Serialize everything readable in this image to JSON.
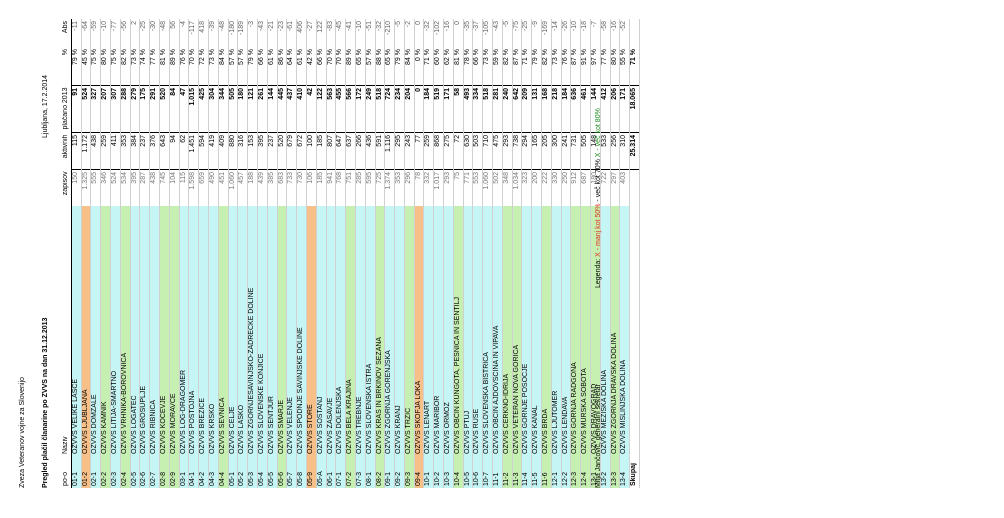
{
  "header": {
    "org": "Zveza Veteranov vojne za Slovenijo",
    "title": "Pregled plačil članarine po ZVVS na dan 31.12.2013",
    "date": "Ljubljana, 17.2.2014"
  },
  "columns": {
    "po": "po-o",
    "naziv": "Naziv",
    "zapisov": "zapisov",
    "aktivnih": "aktivnih",
    "placano": "plačano 2013",
    "pct": "%",
    "abs": "Abs"
  },
  "colors": {
    "green": "#c6efb2",
    "cyan": "#c6f5f5",
    "orange": "#f7c089",
    "red": "#e03020"
  },
  "rows": [
    {
      "po": "01-1",
      "naziv": "OZVVS VELIKE LAŠČE",
      "zap": "150",
      "akt": "115",
      "pla": "91",
      "pct": "79 %",
      "abs": "-11",
      "c": "cyan"
    },
    {
      "po": "01-2",
      "naziv": "OZVVS LJUBLJANA",
      "zap": "1.325",
      "akt": "1.172",
      "pla": "524",
      "pct": "45 %",
      "abs": "-64",
      "c": "orange"
    },
    {
      "po": "02-1",
      "naziv": "OZVVS DOMŽALE",
      "zap": "555",
      "akt": "438",
      "pla": "327",
      "pct": "75 %",
      "abs": "-59",
      "c": "cyan"
    },
    {
      "po": "02-2",
      "naziv": "OZVVS KAMNIK",
      "zap": "346",
      "akt": "259",
      "pla": "207",
      "pct": "80 %",
      "abs": "-10",
      "c": "green"
    },
    {
      "po": "02-3",
      "naziv": "OZVVS LITIJA-ŠMARTNO",
      "zap": "524",
      "akt": "411",
      "pla": "307",
      "pct": "75 %",
      "abs": "-77",
      "c": "cyan"
    },
    {
      "po": "02-4",
      "naziv": "OZVVS VRHNIKA-BOROVNICA",
      "zap": "534",
      "akt": "353",
      "pla": "288",
      "pct": "82 %",
      "abs": "-56",
      "c": "green"
    },
    {
      "po": "02-5",
      "naziv": "OZVVS LOGATEC",
      "zap": "395",
      "akt": "384",
      "pla": "279",
      "pct": "73 %",
      "abs": "2",
      "c": "cyan"
    },
    {
      "po": "02-6",
      "naziv": "OZVVS GROSUPLJE",
      "zap": "287",
      "akt": "237",
      "pla": "175",
      "pct": "74 %",
      "abs": "-25",
      "c": "cyan"
    },
    {
      "po": "02-7",
      "naziv": "OZVVS RIBNICA",
      "zap": "438",
      "akt": "376",
      "pla": "291",
      "pct": "77 %",
      "abs": "-30",
      "c": "cyan"
    },
    {
      "po": "02-8",
      "naziv": "OZVVS KOČEVJE",
      "zap": "745",
      "akt": "643",
      "pla": "520",
      "pct": "81 %",
      "abs": "-48",
      "c": "green"
    },
    {
      "po": "02-9",
      "naziv": "OZVVS MORAVČE",
      "zap": "104",
      "akt": "94",
      "pla": "84",
      "pct": "89 %",
      "abs": "56",
      "c": "green"
    },
    {
      "po": "03-1",
      "naziv": "OZVVS LOG-DRAGOMER",
      "zap": "115",
      "akt": "62",
      "pla": "47",
      "pct": "76 %",
      "abs": "-4",
      "c": "cyan"
    },
    {
      "po": "04-1",
      "naziv": "OZVVS POSTOJNA",
      "zap": "1.598",
      "akt": "1.451",
      "pla": "1.015",
      "pct": "70 %",
      "abs": "-117",
      "c": "cyan"
    },
    {
      "po": "04-2",
      "naziv": "OZVVS BREŽICE",
      "zap": "659",
      "akt": "594",
      "pla": "425",
      "pct": "72 %",
      "abs": "418",
      "c": "cyan"
    },
    {
      "po": "04-3",
      "naziv": "OZVVS KRŠKO",
      "zap": "490",
      "akt": "419",
      "pla": "304",
      "pct": "73 %",
      "abs": "-39",
      "c": "cyan"
    },
    {
      "po": "04-4",
      "naziv": "OZVVS SEVNICA",
      "zap": "451",
      "akt": "409",
      "pla": "344",
      "pct": "84 %",
      "abs": "-48",
      "c": "green"
    },
    {
      "po": "05-1",
      "naziv": "OZVVS CELJE",
      "zap": "1.060",
      "akt": "880",
      "pla": "505",
      "pct": "57 %",
      "abs": "-180",
      "c": "cyan"
    },
    {
      "po": "05-2",
      "naziv": "OZVVS LAŠKO",
      "zap": "457",
      "akt": "316",
      "pla": "180",
      "pct": "57 %",
      "abs": "-189",
      "c": "cyan"
    },
    {
      "po": "05-3",
      "naziv": "OZVVS ZGORNJESAVINJSKO-ZADREČKE DOLINE",
      "zap": "188",
      "akt": "153",
      "pla": "121",
      "pct": "79 %",
      "abs": "-3",
      "c": "cyan"
    },
    {
      "po": "05-4",
      "naziv": "OZVVS SLOVENSKE KONJICE",
      "zap": "439",
      "akt": "395",
      "pla": "261",
      "pct": "66 %",
      "abs": "-43",
      "c": "cyan"
    },
    {
      "po": "05-5",
      "naziv": "OZVVS ŠENTJUR",
      "zap": "385",
      "akt": "237",
      "pla": "144",
      "pct": "61 %",
      "abs": "-21",
      "c": "cyan"
    },
    {
      "po": "05-6",
      "naziv": "OZVVS ŠMARJE",
      "zap": "683",
      "akt": "520",
      "pla": "445",
      "pct": "86 %",
      "abs": "-23",
      "c": "green"
    },
    {
      "po": "05-7",
      "naziv": "OZVVS VELENJE",
      "zap": "733",
      "akt": "679",
      "pla": "437",
      "pct": "64 %",
      "abs": "-61",
      "c": "cyan"
    },
    {
      "po": "05-8",
      "naziv": "OZVVS SPODNJE SAVINJSKE DOLINE",
      "zap": "730",
      "akt": "672",
      "pla": "410",
      "pct": "61 %",
      "abs": "406",
      "c": "cyan"
    },
    {
      "po": "05-9",
      "naziv": "OZVVS ŠTORE",
      "zap": "106",
      "akt": "100",
      "pla": "42",
      "pct": "42 %",
      "abs": "-27",
      "c": "orange"
    },
    {
      "po": "05-A",
      "naziv": "OZVVS ŠOŠTANJ",
      "zap": "185",
      "akt": "185",
      "pla": "122",
      "pct": "66 %",
      "abs": "122",
      "c": "cyan"
    },
    {
      "po": "06-1",
      "naziv": "OZVVS ZASAVJE",
      "zap": "941",
      "akt": "807",
      "pla": "563",
      "pct": "70 %",
      "abs": "-83",
      "c": "cyan"
    },
    {
      "po": "07-1",
      "naziv": "OZVVS DOLENJSKA",
      "zap": "768",
      "akt": "647",
      "pla": "455",
      "pct": "70 %",
      "abs": "-45",
      "c": "cyan"
    },
    {
      "po": "07-2",
      "naziv": "OZVVS BELA KRAJINA",
      "zap": "751",
      "akt": "637",
      "pla": "566",
      "pct": "89 %",
      "abs": "-41",
      "c": "green"
    },
    {
      "po": "07-3",
      "naziv": "OZVVS TREBNJE",
      "zap": "285",
      "akt": "266",
      "pla": "172",
      "pct": "65 %",
      "abs": "-10",
      "c": "cyan"
    },
    {
      "po": "08-1",
      "naziv": "OZVVS SLOVENSKA ISTRA",
      "zap": "595",
      "akt": "436",
      "pla": "249",
      "pct": "57 %",
      "abs": "-51",
      "c": "cyan"
    },
    {
      "po": "08-2",
      "naziv": "OZVVS KRAS IN BRKINOV SEŽANA",
      "zap": "725",
      "akt": "591",
      "pla": "518",
      "pct": "88 %",
      "abs": "-32",
      "c": "green"
    },
    {
      "po": "09-1",
      "naziv": "OZVVS ZGORNJA GORENJSKA",
      "zap": "1.374",
      "akt": "1.116",
      "pla": "724",
      "pct": "65 %",
      "abs": "-210",
      "c": "cyan"
    },
    {
      "po": "09-2",
      "naziv": "OZVVS KRANJ",
      "zap": "353",
      "akt": "295",
      "pla": "234",
      "pct": "79 %",
      "abs": "-5",
      "c": "cyan"
    },
    {
      "po": "09-3",
      "naziv": "OZVVS TRŽIČ",
      "zap": "296",
      "akt": "243",
      "pla": "204",
      "pct": "84 %",
      "abs": "-2",
      "c": "green"
    },
    {
      "po": "09-4",
      "naziv": "OZVVS ŠKOFJA LOKA",
      "zap": "78",
      "akt": "77",
      "pla": "0",
      "pct": "0 %",
      "abs": "0",
      "c": "orange"
    },
    {
      "po": "10-1",
      "naziv": "OZVVS LENART",
      "zap": "332",
      "akt": "259",
      "pla": "184",
      "pct": "71 %",
      "abs": "-32",
      "c": "cyan"
    },
    {
      "po": "10-2",
      "naziv": "OZVVS MARIBOR",
      "zap": "1.017",
      "akt": "868",
      "pla": "519",
      "pct": "60 %",
      "abs": "-102",
      "c": "cyan"
    },
    {
      "po": "10-3",
      "naziv": "OZVVS ORMOŽ",
      "zap": "293",
      "akt": "275",
      "pla": "171",
      "pct": "62 %",
      "abs": "-16",
      "c": "cyan"
    },
    {
      "po": "10-4",
      "naziv": "OZVVS OBČIN KUNGOTA, PESNICA IN ŠENTILJ",
      "zap": "75",
      "akt": "72",
      "pla": "58",
      "pct": "81 %",
      "abs": "0",
      "c": "green"
    },
    {
      "po": "10-5",
      "naziv": "OZVVS PTUJ",
      "zap": "771",
      "akt": "630",
      "pla": "493",
      "pct": "78 %",
      "abs": "-35",
      "c": "cyan"
    },
    {
      "po": "10-6",
      "naziv": "OZVVS RUŠE",
      "zap": "553",
      "akt": "503",
      "pla": "334",
      "pct": "66 %",
      "abs": "-37",
      "c": "cyan"
    },
    {
      "po": "10-7",
      "naziv": "OZVVS SLOVENSKA BISTRICA",
      "zap": "1.060",
      "akt": "710",
      "pla": "518",
      "pct": "73 %",
      "abs": "-105",
      "c": "cyan"
    },
    {
      "po": "11-1",
      "naziv": "OZVVS OBČIN AJDOVŠČINA IN VIPAVA",
      "zap": "502",
      "akt": "475",
      "pla": "281",
      "pct": "59 %",
      "abs": "-43",
      "c": "cyan"
    },
    {
      "po": "11-2",
      "naziv": "OZVVS CERKNO-IDRIJA",
      "zap": "348",
      "akt": "293",
      "pla": "240",
      "pct": "82 %",
      "abs": "-5",
      "c": "green"
    },
    {
      "po": "11-3",
      "naziv": "OZVVS VETERAN NOVA GORICA",
      "zap": "1.034",
      "akt": "738",
      "pla": "642",
      "pct": "87 %",
      "abs": "-75",
      "c": "green"
    },
    {
      "po": "11-4",
      "naziv": "OZVVS GORNJE POSOČJE",
      "zap": "323",
      "akt": "294",
      "pla": "209",
      "pct": "71 %",
      "abs": "-25",
      "c": "cyan"
    },
    {
      "po": "11-5",
      "naziv": "OZVVS KANAL",
      "zap": "200",
      "akt": "165",
      "pla": "131",
      "pct": "79 %",
      "abs": "-9",
      "c": "cyan"
    },
    {
      "po": "11-6",
      "naziv": "OZVVS BRDA",
      "zap": "222",
      "akt": "205",
      "pla": "168",
      "pct": "82 %",
      "abs": "-169",
      "c": "green"
    },
    {
      "po": "12-1",
      "naziv": "OZVVS LJUTOMER",
      "zap": "330",
      "akt": "300",
      "pla": "218",
      "pct": "73 %",
      "abs": "-14",
      "c": "cyan"
    },
    {
      "po": "12-2",
      "naziv": "OZVVS LENDAVA",
      "zap": "250",
      "akt": "241",
      "pla": "184",
      "pct": "76 %",
      "abs": "-26",
      "c": "cyan"
    },
    {
      "po": "12-3",
      "naziv": "OZVVS GORNJA RADGONA",
      "zap": "912",
      "akt": "731",
      "pla": "636",
      "pct": "87 %",
      "abs": "-10",
      "c": "green"
    },
    {
      "po": "12-4",
      "naziv": "OZVVS MURSKA SOBOTA",
      "zap": "687",
      "akt": "505",
      "pla": "461",
      "pct": "91 %",
      "abs": "-18",
      "c": "green"
    },
    {
      "po": "13-1",
      "naziv": "OZVVS DRAVOGRAD",
      "zap": "180",
      "akt": "148",
      "pla": "144",
      "pct": "97 %",
      "abs": "-7",
      "c": "green"
    },
    {
      "po": "13-2",
      "naziv": "OZVVS MEŽIŠKA DOLINA",
      "zap": "722",
      "akt": "533",
      "pla": "412",
      "pct": "77 %",
      "abs": "-58",
      "c": "cyan"
    },
    {
      "po": "13-3",
      "naziv": "OZVVS ZGORNJA DRAVSKA DOLINA",
      "zap": "297",
      "akt": "256",
      "pla": "206",
      "pct": "80 %",
      "abs": "-16",
      "c": "green"
    },
    {
      "po": "13-4",
      "naziv": "OZVVS MISLINJSKA DOLINA",
      "zap": "403",
      "akt": "310",
      "pla": "171",
      "pct": "55 %",
      "abs": "-52",
      "c": "cyan"
    }
  ],
  "summary": {
    "label": "Skupaj",
    "akt": "25.314",
    "pla": "18.065",
    "pct": "71 %"
  },
  "footer": {
    "signature": "Mitja Jančovič, generalni sekretar",
    "legend_label": "Legenda:",
    "legend_red": "X - manj kot 50%",
    "legend_mid": "- več kot 70%",
    "legend_green": "X - več kot 80%"
  }
}
